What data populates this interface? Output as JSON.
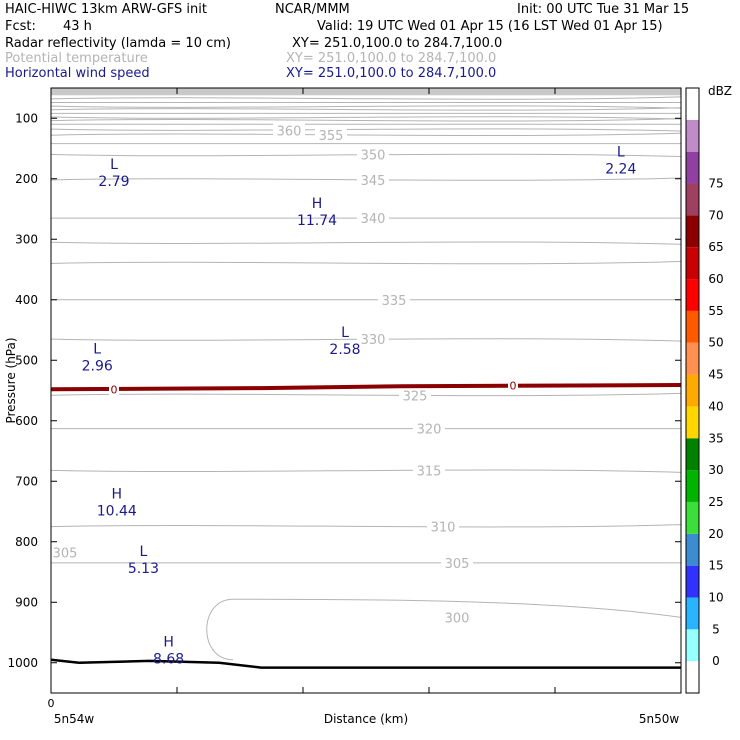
{
  "header": {
    "model_title": "HAIC-HIWC 13km ARW-GFS init",
    "org": "NCAR/MMM",
    "init": "Init: 00 UTC Tue 31 Mar 15",
    "fcst_label": "Fcst:",
    "fcst_value": "43 h",
    "valid": "Valid: 19 UTC Wed 01 Apr 15 (16 LST Wed 01 Apr 15)",
    "fields": [
      {
        "name": "Radar reflectivity (lamda = 10 cm)",
        "xy": "XY= 251.0,100.0 to 284.7,100.0"
      },
      {
        "name": "Potential temperature",
        "xy": "XY= 251.0,100.0 to 284.7,100.0"
      },
      {
        "name": "Horizontal wind speed",
        "xy": "XY= 251.0,100.0 to 284.7,100.0"
      }
    ]
  },
  "colors": {
    "wind": "#1a1a8c",
    "theta": "#b4b4b4",
    "freezing_line": "#8b0000",
    "terrain": "#000000",
    "top_shading": "#c8c8c8"
  },
  "chart_data": {
    "type": "contour_cross_section",
    "ylabel": "Pressure (hPa)",
    "xlabel": "Distance (km)",
    "x_left_label": "5n54w",
    "x_right_label": "5n50w",
    "x_zero_label": "0",
    "y_ticks": [
      100,
      200,
      300,
      400,
      500,
      600,
      700,
      800,
      900,
      1000
    ],
    "ylim": [
      1050,
      50
    ],
    "x_range": [
      0,
      4.5
    ],
    "theta_contour_labels": [
      {
        "value": "360",
        "x": 1.7,
        "p": 120
      },
      {
        "value": "355",
        "x": 2.0,
        "p": 128
      },
      {
        "value": "350",
        "x": 2.3,
        "p": 160
      },
      {
        "value": "345",
        "x": 2.3,
        "p": 202
      },
      {
        "value": "340",
        "x": 2.3,
        "p": 265
      },
      {
        "value": "335",
        "x": 2.45,
        "p": 400
      },
      {
        "value": "330",
        "x": 2.3,
        "p": 465
      },
      {
        "value": "325",
        "x": 2.6,
        "p": 558
      },
      {
        "value": "320",
        "x": 2.7,
        "p": 613
      },
      {
        "value": "315",
        "x": 2.7,
        "p": 682
      },
      {
        "value": "310",
        "x": 2.8,
        "p": 775
      },
      {
        "value": "305",
        "x": 0.1,
        "p": 818
      },
      {
        "value": "305",
        "x": 2.9,
        "p": 835
      },
      {
        "value": "300",
        "x": 2.9,
        "p": 925
      }
    ],
    "wind_extrema": [
      {
        "type": "L",
        "value": "2.24",
        "x": 4.07,
        "p": 180
      },
      {
        "type": "L",
        "value": "2.79",
        "x": 0.45,
        "p": 200
      },
      {
        "type": "H",
        "value": "11.74",
        "x": 1.9,
        "p": 265
      },
      {
        "type": "L",
        "value": "2.58",
        "x": 2.1,
        "p": 478
      },
      {
        "type": "L",
        "value": "2.96",
        "x": 0.33,
        "p": 505
      },
      {
        "type": "H",
        "value": "10.44",
        "x": 0.47,
        "p": 745
      },
      {
        "type": "L",
        "value": "5.13",
        "x": 0.66,
        "p": 840
      },
      {
        "type": "H",
        "value": "8.68",
        "x": 0.84,
        "p": 990
      }
    ],
    "freezing_level_label": "0",
    "freezing_level": [
      {
        "x": 0,
        "p": 548
      },
      {
        "x": 1.5,
        "p": 546
      },
      {
        "x": 2.5,
        "p": 543
      },
      {
        "x": 4.5,
        "p": 541
      }
    ],
    "terrain_surface": [
      {
        "x": 0,
        "p": 995
      },
      {
        "x": 0.2,
        "p": 1000
      },
      {
        "x": 0.7,
        "p": 997
      },
      {
        "x": 1.2,
        "p": 1000
      },
      {
        "x": 1.5,
        "p": 1008
      },
      {
        "x": 4.5,
        "p": 1008
      }
    ],
    "colorbar": {
      "title": "dBZ",
      "ticks": [
        0,
        5,
        10,
        15,
        20,
        25,
        30,
        35,
        40,
        45,
        50,
        55,
        60,
        65,
        70,
        75
      ],
      "colors": [
        "#ffffff",
        "#96ffff",
        "#28b4ff",
        "#3232ff",
        "#3c8cd2",
        "#3cde3c",
        "#00b400",
        "#008200",
        "#ffd700",
        "#ffaa00",
        "#ff9050",
        "#ff5a00",
        "#ff0000",
        "#c80000",
        "#8c0000",
        "#a04060",
        "#9040a0",
        "#c08cc8",
        "#ffffff"
      ]
    }
  }
}
